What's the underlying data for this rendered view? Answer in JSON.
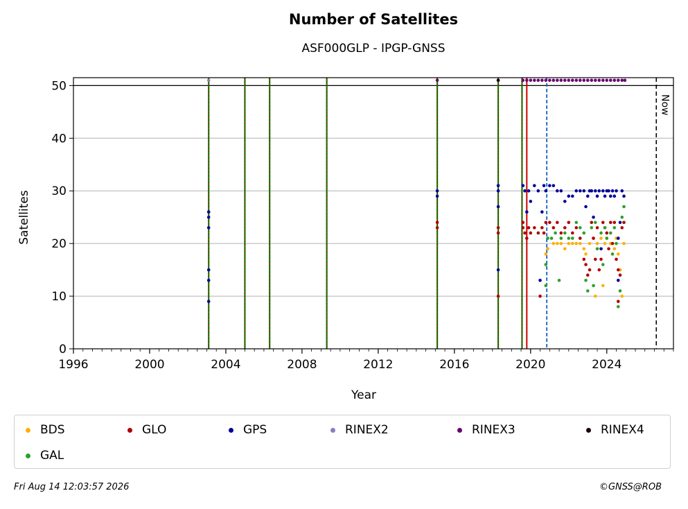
{
  "chart_data": {
    "type": "scatter",
    "title": "Number of Satellites",
    "subtitle": "ASF000GLP - IPGP-GNSS",
    "xlabel": "Year",
    "ylabel": "Satellites",
    "xlim": [
      1996,
      2027.5
    ],
    "ylim": [
      0,
      51.5
    ],
    "xticks": [
      1996,
      2000,
      2004,
      2008,
      2012,
      2016,
      2020,
      2024
    ],
    "yticks": [
      0,
      10,
      20,
      30,
      40,
      50
    ],
    "grid": "horizontal",
    "legend_position": "bottom",
    "reference_line": {
      "y": 50
    },
    "now_line": {
      "x": 2026.6,
      "label": "Now"
    },
    "vertical_markers": [
      {
        "x": 2003.1,
        "style": "green-red-dashed"
      },
      {
        "x": 2005.0,
        "style": "green-red-dashed"
      },
      {
        "x": 2006.3,
        "style": "green-red-dashed"
      },
      {
        "x": 2009.3,
        "style": "green-red-dashed"
      },
      {
        "x": 2015.1,
        "style": "green-red-dashed"
      },
      {
        "x": 2018.3,
        "style": "green-red-dashed"
      },
      {
        "x": 2019.55,
        "style": "green-red-dashed"
      },
      {
        "x": 2019.8,
        "style": "red-solid"
      },
      {
        "x": 2020.85,
        "style": "blue-dashed"
      }
    ],
    "series": [
      {
        "name": "BDS",
        "color": "#ffb000",
        "points": [
          [
            2020.8,
            18
          ],
          [
            2020.9,
            19
          ],
          [
            2021.2,
            20
          ],
          [
            2021.4,
            20
          ],
          [
            2021.6,
            20
          ],
          [
            2021.8,
            19
          ],
          [
            2022.0,
            20
          ],
          [
            2022.2,
            20
          ],
          [
            2022.4,
            20
          ],
          [
            2022.6,
            20
          ],
          [
            2022.8,
            19
          ],
          [
            2022.9,
            18
          ],
          [
            2023.1,
            20
          ],
          [
            2023.3,
            21
          ],
          [
            2023.4,
            10
          ],
          [
            2023.5,
            20
          ],
          [
            2023.7,
            21
          ],
          [
            2023.8,
            12
          ],
          [
            2023.9,
            20
          ],
          [
            2024.0,
            21
          ],
          [
            2024.2,
            20
          ],
          [
            2024.4,
            19
          ],
          [
            2024.5,
            21
          ],
          [
            2024.6,
            18
          ],
          [
            2024.7,
            15
          ],
          [
            2024.8,
            10
          ],
          [
            2024.9,
            20
          ]
        ]
      },
      {
        "name": "GLO",
        "color": "#b00000",
        "points": [
          [
            2003.1,
            26
          ],
          [
            2015.1,
            23
          ],
          [
            2015.1,
            24
          ],
          [
            2018.3,
            10
          ],
          [
            2018.3,
            22
          ],
          [
            2018.3,
            23
          ],
          [
            2019.6,
            23
          ],
          [
            2019.6,
            24
          ],
          [
            2019.7,
            22
          ],
          [
            2019.8,
            21
          ],
          [
            2019.9,
            23
          ],
          [
            2020.0,
            22
          ],
          [
            2020.2,
            23
          ],
          [
            2020.4,
            22
          ],
          [
            2020.5,
            10
          ],
          [
            2020.6,
            23
          ],
          [
            2020.7,
            22
          ],
          [
            2020.8,
            24
          ],
          [
            2021.0,
            24
          ],
          [
            2021.2,
            23
          ],
          [
            2021.4,
            24
          ],
          [
            2021.6,
            22
          ],
          [
            2021.8,
            23
          ],
          [
            2022.0,
            24
          ],
          [
            2022.2,
            22
          ],
          [
            2022.4,
            23
          ],
          [
            2022.6,
            21
          ],
          [
            2022.8,
            17
          ],
          [
            2022.9,
            16
          ],
          [
            2023.0,
            14
          ],
          [
            2023.1,
            15
          ],
          [
            2023.2,
            24
          ],
          [
            2023.3,
            21
          ],
          [
            2023.4,
            17
          ],
          [
            2023.5,
            23
          ],
          [
            2023.6,
            15
          ],
          [
            2023.7,
            17
          ],
          [
            2023.8,
            24
          ],
          [
            2023.9,
            23
          ],
          [
            2024.0,
            22
          ],
          [
            2024.1,
            19
          ],
          [
            2024.2,
            24
          ],
          [
            2024.3,
            20
          ],
          [
            2024.4,
            24
          ],
          [
            2024.5,
            17
          ],
          [
            2024.6,
            15
          ],
          [
            2024.6,
            9
          ],
          [
            2024.7,
            14
          ],
          [
            2024.8,
            23
          ],
          [
            2024.9,
            24
          ]
        ]
      },
      {
        "name": "GPS",
        "color": "#000099",
        "points": [
          [
            2003.1,
            9
          ],
          [
            2003.1,
            13
          ],
          [
            2003.1,
            15
          ],
          [
            2003.1,
            23
          ],
          [
            2003.1,
            25
          ],
          [
            2003.1,
            26
          ],
          [
            2015.1,
            29
          ],
          [
            2015.1,
            30
          ],
          [
            2018.3,
            15
          ],
          [
            2018.3,
            27
          ],
          [
            2018.3,
            30
          ],
          [
            2018.3,
            31
          ],
          [
            2019.6,
            31
          ],
          [
            2019.7,
            30
          ],
          [
            2019.8,
            26
          ],
          [
            2019.9,
            30
          ],
          [
            2020.0,
            28
          ],
          [
            2020.2,
            31
          ],
          [
            2020.4,
            30
          ],
          [
            2020.5,
            13
          ],
          [
            2020.6,
            26
          ],
          [
            2020.7,
            31
          ],
          [
            2020.8,
            30
          ],
          [
            2021.0,
            31
          ],
          [
            2021.2,
            31
          ],
          [
            2021.4,
            30
          ],
          [
            2021.6,
            30
          ],
          [
            2021.8,
            28
          ],
          [
            2022.0,
            29
          ],
          [
            2022.2,
            29
          ],
          [
            2022.4,
            30
          ],
          [
            2022.6,
            30
          ],
          [
            2022.8,
            30
          ],
          [
            2022.9,
            27
          ],
          [
            2023.0,
            29
          ],
          [
            2023.1,
            30
          ],
          [
            2023.2,
            30
          ],
          [
            2023.3,
            25
          ],
          [
            2023.4,
            30
          ],
          [
            2023.5,
            29
          ],
          [
            2023.6,
            30
          ],
          [
            2023.7,
            19
          ],
          [
            2023.8,
            30
          ],
          [
            2023.9,
            29
          ],
          [
            2024.0,
            30
          ],
          [
            2024.1,
            30
          ],
          [
            2024.2,
            29
          ],
          [
            2024.3,
            30
          ],
          [
            2024.4,
            29
          ],
          [
            2024.5,
            30
          ],
          [
            2024.6,
            21
          ],
          [
            2024.6,
            13
          ],
          [
            2024.7,
            24
          ],
          [
            2024.8,
            30
          ],
          [
            2024.9,
            29
          ]
        ]
      },
      {
        "name": "RINEX2",
        "color": "#8c7cc0",
        "points": [
          [
            2003.1,
            51
          ]
        ]
      },
      {
        "name": "RINEX3",
        "color": "#6a0070",
        "points": [
          [
            2015.1,
            51
          ],
          [
            2018.3,
            51
          ],
          [
            2019.6,
            51
          ],
          [
            2019.8,
            51
          ],
          [
            2020.0,
            51
          ],
          [
            2020.2,
            51
          ],
          [
            2020.4,
            51
          ],
          [
            2020.6,
            51
          ],
          [
            2020.8,
            51
          ],
          [
            2021.0,
            51
          ],
          [
            2021.2,
            51
          ],
          [
            2021.4,
            51
          ],
          [
            2021.6,
            51
          ],
          [
            2021.8,
            51
          ],
          [
            2022.0,
            51
          ],
          [
            2022.2,
            51
          ],
          [
            2022.4,
            51
          ],
          [
            2022.6,
            51
          ],
          [
            2022.8,
            51
          ],
          [
            2023.0,
            51
          ],
          [
            2023.2,
            51
          ],
          [
            2023.4,
            51
          ],
          [
            2023.6,
            51
          ],
          [
            2023.8,
            51
          ],
          [
            2024.0,
            51
          ],
          [
            2024.2,
            51
          ],
          [
            2024.4,
            51
          ],
          [
            2024.6,
            51
          ],
          [
            2024.8,
            51
          ],
          [
            2024.95,
            51
          ]
        ]
      },
      {
        "name": "RINEX4",
        "color": "#1a0010",
        "points": [
          [
            2018.3,
            51
          ]
        ]
      },
      {
        "name": "GAL",
        "color": "#2ca02c",
        "points": [
          [
            2020.8,
            12
          ],
          [
            2020.8,
            16
          ],
          [
            2020.9,
            21
          ],
          [
            2021.1,
            21
          ],
          [
            2021.3,
            22
          ],
          [
            2021.5,
            13
          ],
          [
            2021.6,
            21
          ],
          [
            2021.8,
            22
          ],
          [
            2022.0,
            21
          ],
          [
            2022.2,
            21
          ],
          [
            2022.4,
            24
          ],
          [
            2022.6,
            23
          ],
          [
            2022.8,
            22
          ],
          [
            2022.9,
            13
          ],
          [
            2023.0,
            11
          ],
          [
            2023.2,
            23
          ],
          [
            2023.3,
            12
          ],
          [
            2023.4,
            24
          ],
          [
            2023.5,
            19
          ],
          [
            2023.7,
            22
          ],
          [
            2023.8,
            16
          ],
          [
            2023.9,
            23
          ],
          [
            2024.0,
            21
          ],
          [
            2024.2,
            22
          ],
          [
            2024.3,
            18
          ],
          [
            2024.4,
            23
          ],
          [
            2024.5,
            20
          ],
          [
            2024.6,
            8
          ],
          [
            2024.7,
            11
          ],
          [
            2024.8,
            25
          ],
          [
            2024.9,
            27
          ]
        ]
      }
    ]
  },
  "footer": {
    "date": "Fri Aug 14 12:03:57 2026",
    "credit": "©GNSS@ROB"
  }
}
